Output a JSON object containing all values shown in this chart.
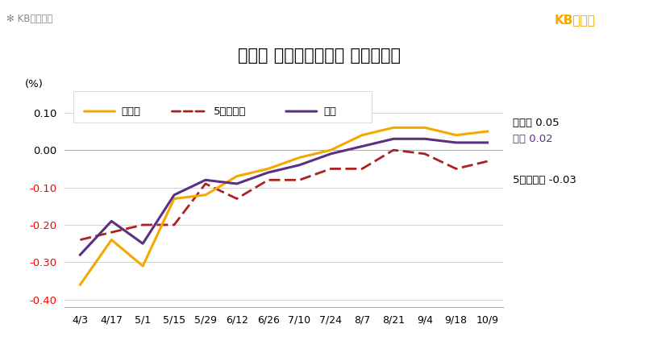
{
  "title": "지역별 아파트매매가격 주간변동률",
  "ylabel": "(%)",
  "bg_color": "#ffffff",
  "title_bg_color": "#eeede0",
  "x_labels": [
    "4/3",
    "4/17",
    "5/1",
    "5/15",
    "5/29",
    "6/12",
    "6/26",
    "7/10",
    "7/24",
    "8/7",
    "8/21",
    "9/4",
    "9/18",
    "10/9"
  ],
  "sudokwon": [
    -0.36,
    -0.24,
    -0.31,
    -0.13,
    -0.12,
    -0.07,
    -0.05,
    -0.02,
    0.0,
    0.04,
    0.06,
    0.06,
    0.04,
    0.05
  ],
  "city5": [
    -0.24,
    -0.22,
    -0.2,
    -0.2,
    -0.09,
    -0.13,
    -0.08,
    -0.08,
    -0.05,
    -0.05,
    0.0,
    -0.01,
    -0.05,
    -0.03
  ],
  "jeonkuk": [
    -0.28,
    -0.19,
    -0.25,
    -0.12,
    -0.08,
    -0.09,
    -0.06,
    -0.04,
    -0.01,
    0.01,
    0.03,
    0.03,
    0.02,
    0.02
  ],
  "sudokwon_color": "#f5a800",
  "city5_color": "#aa2222",
  "jeonkuk_color": "#5b3080",
  "ylim": [
    -0.42,
    0.14
  ],
  "yticks": [
    -0.4,
    -0.3,
    -0.2,
    -0.1,
    0.0,
    0.1
  ],
  "kb_brand_color": "#f5a800",
  "kb_logo_gray": "#888888"
}
